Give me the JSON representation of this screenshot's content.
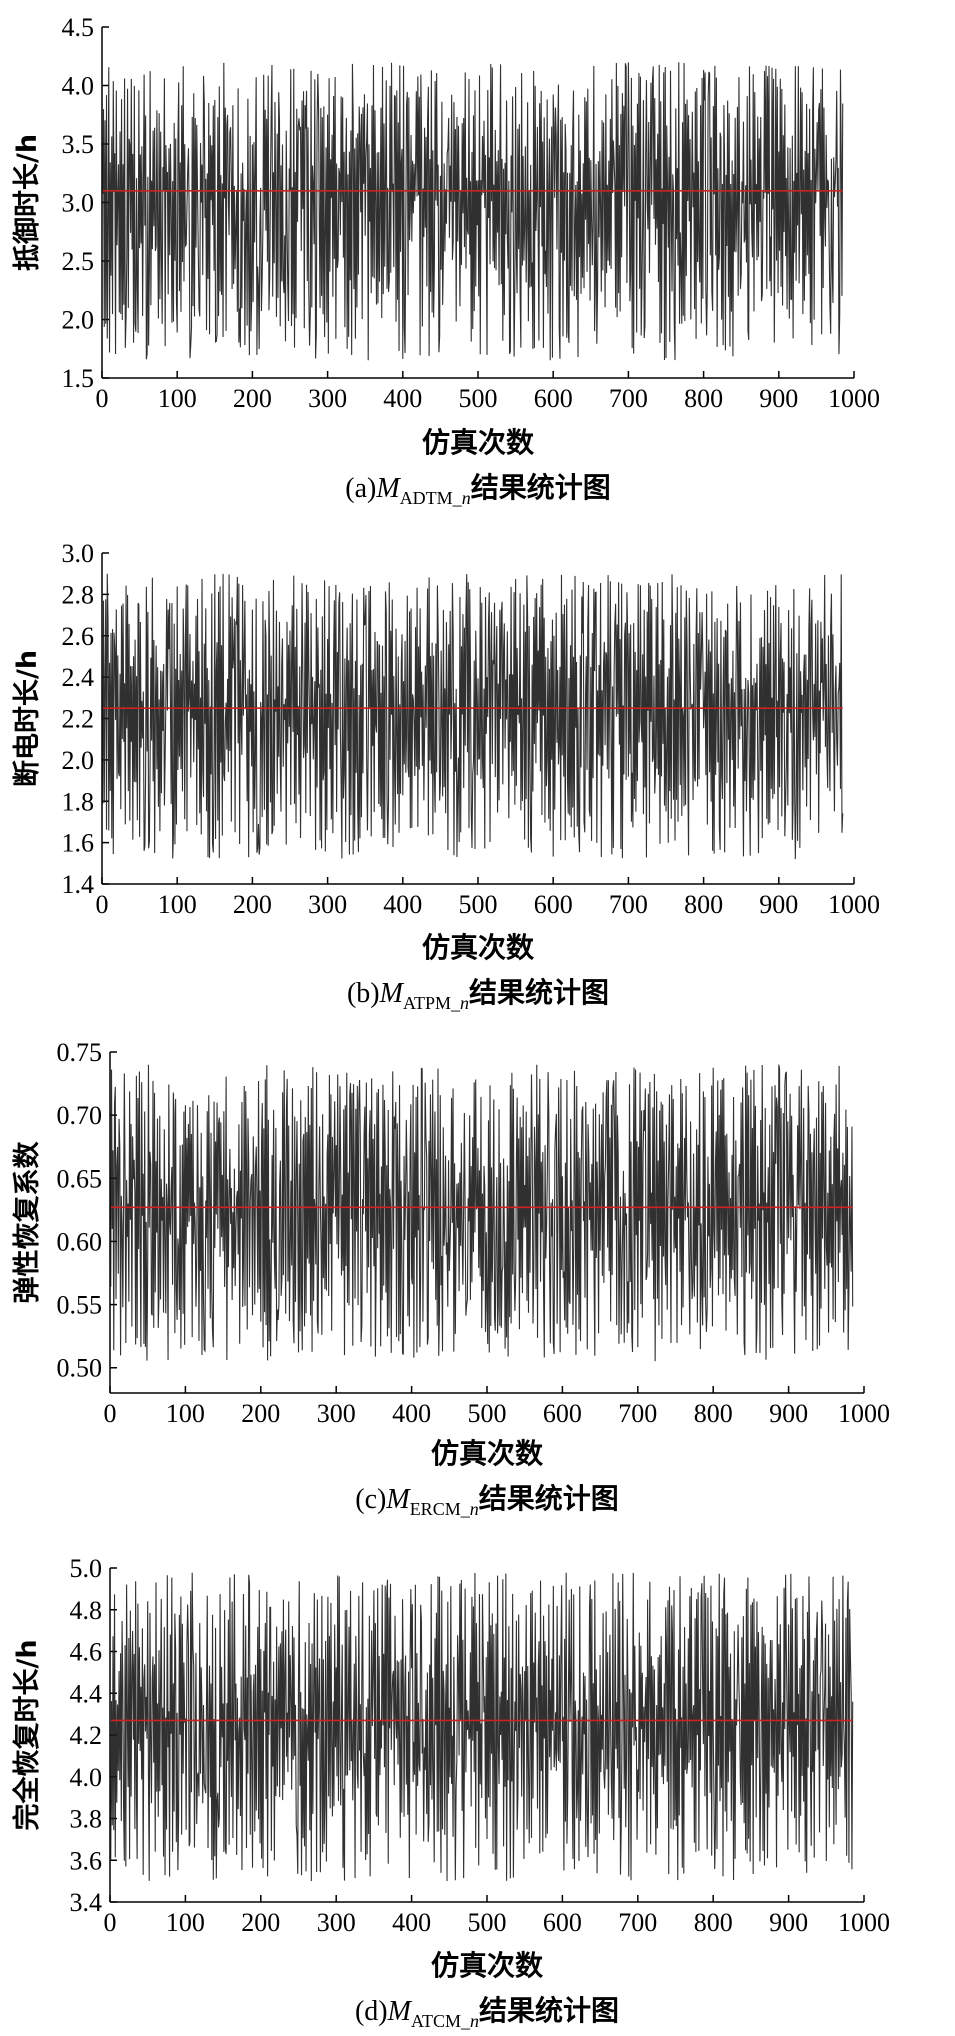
{
  "chart_data": [
    {
      "type": "line",
      "caption_prefix": "(a)",
      "caption_var": "M",
      "caption_sub_upright": "ADTM_",
      "caption_sub_italic": "n",
      "caption_suffix": "结果统计图",
      "xlabel": "仿真次数",
      "ylabel": "抵御时长/h",
      "xlim": [
        0,
        1000
      ],
      "xticks": [
        "0",
        "100",
        "200",
        "300",
        "400",
        "500",
        "600",
        "700",
        "800",
        "900",
        "1000"
      ],
      "ylim": [
        1.5,
        4.5
      ],
      "yticks": [
        "1.5",
        "2.0",
        "2.5",
        "3.0",
        "3.5",
        "4.0",
        "4.5"
      ],
      "n_points": 985,
      "mean": 3.1,
      "series_range": [
        1.65,
        4.2
      ],
      "line_color": "#1a1a1a",
      "mean_color": "#cc2222"
    },
    {
      "type": "line",
      "caption_prefix": "(b)",
      "caption_var": "M",
      "caption_sub_upright": "ATPM_",
      "caption_sub_italic": "n",
      "caption_suffix": "结果统计图",
      "xlabel": "仿真次数",
      "ylabel": "断电时长/h",
      "xlim": [
        0,
        1000
      ],
      "xticks": [
        "0",
        "100",
        "200",
        "300",
        "400",
        "500",
        "600",
        "700",
        "800",
        "900",
        "1000"
      ],
      "ylim": [
        1.4,
        3.0
      ],
      "yticks": [
        "1.4",
        "1.6",
        "1.8",
        "2.0",
        "2.2",
        "2.4",
        "2.6",
        "2.8",
        "3.0"
      ],
      "n_points": 985,
      "mean": 2.25,
      "series_range": [
        1.52,
        2.9
      ],
      "line_color": "#1a1a1a",
      "mean_color": "#cc2222"
    },
    {
      "type": "line",
      "caption_prefix": "(c)",
      "caption_var": "M",
      "caption_sub_upright": "ERCM_",
      "caption_sub_italic": "n",
      "caption_suffix": "结果统计图",
      "xlabel": "仿真次数",
      "ylabel": "弹性恢复系数",
      "xlim": [
        0,
        1000
      ],
      "xticks": [
        "0",
        "100",
        "200",
        "300",
        "400",
        "500",
        "600",
        "700",
        "800",
        "900",
        "1000"
      ],
      "ylim": [
        0.48,
        0.75
      ],
      "yticks": [
        "0.50",
        "0.55",
        "0.60",
        "0.65",
        "0.70",
        "0.75"
      ],
      "n_points": 985,
      "mean": 0.627,
      "series_range": [
        0.505,
        0.74
      ],
      "line_color": "#1a1a1a",
      "mean_color": "#cc2222"
    },
    {
      "type": "line",
      "caption_prefix": "(d)",
      "caption_var": "M",
      "caption_sub_upright": "ATCM_",
      "caption_sub_italic": "n",
      "caption_suffix": "结果统计图",
      "xlabel": "仿真次数",
      "ylabel": "完全恢复时长/h",
      "xlim": [
        0,
        1000
      ],
      "xticks": [
        "0",
        "100",
        "200",
        "300",
        "400",
        "500",
        "600",
        "700",
        "800",
        "900",
        "1000"
      ],
      "ylim": [
        3.4,
        5.0
      ],
      "yticks": [
        "3.4",
        "3.6",
        "3.8",
        "4.0",
        "4.2",
        "4.4",
        "4.6",
        "4.8",
        "5.0"
      ],
      "n_points": 985,
      "mean": 4.27,
      "series_range": [
        3.5,
        4.98
      ],
      "line_color": "#1a1a1a",
      "mean_color": "#cc2222"
    }
  ]
}
